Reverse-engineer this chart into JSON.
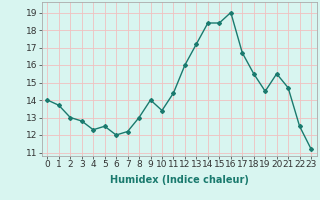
{
  "x": [
    0,
    1,
    2,
    3,
    4,
    5,
    6,
    7,
    8,
    9,
    10,
    11,
    12,
    13,
    14,
    15,
    16,
    17,
    18,
    19,
    20,
    21,
    22,
    23
  ],
  "y": [
    14.0,
    13.7,
    13.0,
    12.8,
    12.3,
    12.5,
    12.0,
    12.2,
    13.0,
    14.0,
    13.4,
    14.4,
    16.0,
    17.2,
    18.4,
    18.4,
    19.0,
    16.7,
    15.5,
    14.5,
    15.5,
    14.7,
    12.5,
    11.2
  ],
  "xlabel": "Humidex (Indice chaleur)",
  "xlim": [
    -0.5,
    23.5
  ],
  "ylim": [
    10.8,
    19.6
  ],
  "yticks": [
    11,
    12,
    13,
    14,
    15,
    16,
    17,
    18,
    19
  ],
  "xticks": [
    0,
    1,
    2,
    3,
    4,
    5,
    6,
    7,
    8,
    9,
    10,
    11,
    12,
    13,
    14,
    15,
    16,
    17,
    18,
    19,
    20,
    21,
    22,
    23
  ],
  "xtick_labels": [
    "0",
    "1",
    "2",
    "3",
    "4",
    "5",
    "6",
    "7",
    "8",
    "9",
    "10",
    "11",
    "12",
    "13",
    "14",
    "15",
    "16",
    "17",
    "18",
    "19",
    "20",
    "21",
    "22",
    "23"
  ],
  "line_color": "#1a7a6e",
  "marker": "D",
  "marker_size": 2.0,
  "line_width": 1.0,
  "bg_color": "#d8f5f0",
  "grid_color": "#f0c0c0",
  "xlabel_fontsize": 7,
  "tick_fontsize": 6.5
}
